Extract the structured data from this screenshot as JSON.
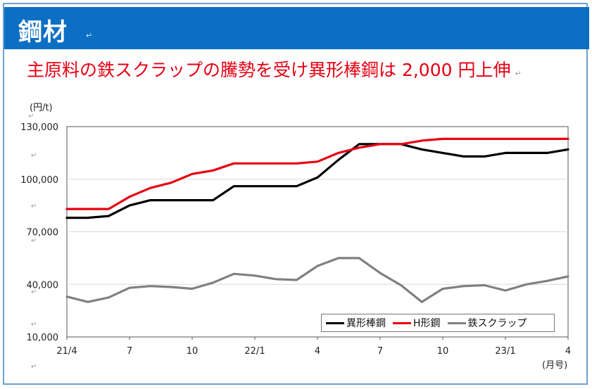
{
  "header": {
    "title": "鋼材"
  },
  "subtitle": "主原料の鉄スクラップの騰勢を受け異形棒鋼は 2,000 円上伸",
  "return_mark": "↵",
  "chart_data": {
    "type": "line",
    "ylabel": "(円/t)",
    "xlabel": "(月号)",
    "ylim": [
      10000,
      130000
    ],
    "y_ticks": [
      "130,000",
      "100,000",
      "70,000",
      "40,000",
      "10,000"
    ],
    "y_tick_values": [
      130000,
      100000,
      70000,
      40000,
      10000
    ],
    "x_tick_labels": [
      "21/4",
      "7",
      "10",
      "22/1",
      "4",
      "7",
      "10",
      "23/1",
      "4"
    ],
    "x": [
      "21/4",
      "21/5",
      "21/6",
      "21/7",
      "21/8",
      "21/9",
      "21/10",
      "21/11",
      "21/12",
      "22/1",
      "22/2",
      "22/3",
      "22/4",
      "22/5",
      "22/6",
      "22/7",
      "22/8",
      "22/9",
      "22/10",
      "22/11",
      "22/12",
      "23/1",
      "23/2",
      "23/3",
      "23/4"
    ],
    "grid": true,
    "legend_position": "bottom-right",
    "series": [
      {
        "name": "異形棒鋼",
        "color": "#000000",
        "values": [
          78000,
          78000,
          79000,
          85000,
          88000,
          88000,
          88000,
          88000,
          96000,
          96000,
          96000,
          96000,
          101000,
          111000,
          120000,
          120000,
          120000,
          117000,
          115000,
          113000,
          113000,
          115000,
          115000,
          115000,
          117000
        ]
      },
      {
        "name": "H形鋼",
        "color": "#e60012",
        "values": [
          83000,
          83000,
          83000,
          90000,
          95000,
          98000,
          103000,
          105000,
          109000,
          109000,
          109000,
          109000,
          110000,
          115000,
          118000,
          120000,
          120000,
          122000,
          123000,
          123000,
          123000,
          123000,
          123000,
          123000,
          123000
        ]
      },
      {
        "name": "鉄スクラップ",
        "color": "#808080",
        "values": [
          33000,
          30000,
          32500,
          38000,
          39000,
          38500,
          37500,
          41000,
          46000,
          45000,
          43000,
          42500,
          50500,
          55000,
          55000,
          46500,
          39500,
          30000,
          37500,
          39000,
          39500,
          36500,
          40000,
          42000,
          44500
        ]
      }
    ]
  }
}
